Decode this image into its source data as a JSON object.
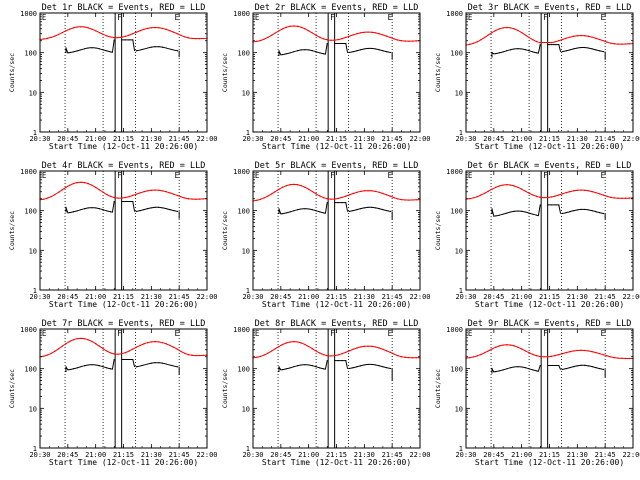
{
  "chart_data": {
    "type": "line",
    "x_ticks": [
      "20:30",
      "20:45",
      "21:00",
      "21:15",
      "21:30",
      "21:45",
      "22:00"
    ],
    "x_range_minutes": [
      0,
      90
    ],
    "ylim": [
      1,
      1000
    ],
    "yscale": "log",
    "y_ticks": [
      "1",
      "10",
      "100",
      "1000"
    ],
    "ylabel": "Counts/sec",
    "xlabel": "Start Time (12-Oct-11 20:26:00)",
    "dotted_lines_minutes": [
      13.5,
      34,
      51.5,
      75
    ],
    "solid_band_minutes": [
      40.5,
      44
    ],
    "flags": [
      {
        "text": "E",
        "minute": 0.5
      },
      {
        "text": "F",
        "minute": 41
      },
      {
        "text": "E",
        "minute": 72
      }
    ],
    "series_names": [
      "Events",
      "LLD"
    ],
    "series_colors": {
      "Events": "#000000",
      "LLD": "#ff0000"
    },
    "panels": [
      {
        "title": "Det 1r BLACK = Events, RED = LLD",
        "lld": {
          "base": 210,
          "peak1": 450,
          "mid": 220,
          "peak2": 430,
          "end": 230
        },
        "events": {
          "start": 130,
          "mid": 210,
          "lowA": 95,
          "lowB": 105,
          "end": 110
        }
      },
      {
        "title": "Det 2r BLACK = Events, RED = LLD",
        "lld": {
          "base": 180,
          "peak1": 470,
          "mid": 190,
          "peak2": 330,
          "end": 200
        },
        "events": {
          "start": 110,
          "mid": 170,
          "lowA": 85,
          "lowB": 95,
          "end": 95
        }
      },
      {
        "title": "Det 3r BLACK = Events, RED = LLD",
        "lld": {
          "base": 150,
          "peak1": 430,
          "mid": 180,
          "peak2": 270,
          "end": 170
        },
        "events": {
          "start": 100,
          "mid": 160,
          "lowA": 90,
          "lowB": 100,
          "end": 95
        }
      },
      {
        "title": "Det 4r BLACK = Events, RED = LLD",
        "lld": {
          "base": 180,
          "peak1": 520,
          "mid": 190,
          "peak2": 330,
          "end": 200
        },
        "events": {
          "start": 120,
          "mid": 170,
          "lowA": 85,
          "lowB": 90,
          "end": 90
        }
      },
      {
        "title": "Det 5r BLACK = Events, RED = LLD",
        "lld": {
          "base": 170,
          "peak1": 460,
          "mid": 180,
          "peak2": 320,
          "end": 190
        },
        "events": {
          "start": 110,
          "mid": 160,
          "lowA": 80,
          "lowB": 90,
          "end": 85
        }
      },
      {
        "title": "Det 6r BLACK = Events, RED = LLD",
        "lld": {
          "base": 190,
          "peak1": 450,
          "mid": 200,
          "peak2": 330,
          "end": 210
        },
        "events": {
          "start": 110,
          "mid": 140,
          "lowA": 70,
          "lowB": 80,
          "end": 85
        }
      },
      {
        "title": "Det 7r BLACK = Events, RED = LLD",
        "lld": {
          "base": 190,
          "peak1": 580,
          "mid": 200,
          "peak2": 480,
          "end": 220
        },
        "events": {
          "start": 110,
          "mid": 170,
          "lowA": 90,
          "lowB": 105,
          "end": 100
        }
      },
      {
        "title": "Det 8r BLACK = Events, RED = LLD",
        "lld": {
          "base": 180,
          "peak1": 480,
          "mid": 190,
          "peak2": 370,
          "end": 190
        },
        "events": {
          "start": 110,
          "mid": 160,
          "lowA": 90,
          "lowB": 95,
          "end": 70
        }
      },
      {
        "title": "Det 9r BLACK = Events, RED = LLD",
        "lld": {
          "base": 180,
          "peak1": 400,
          "mid": 190,
          "peak2": 290,
          "end": 180
        },
        "events": {
          "start": 100,
          "mid": 120,
          "lowA": 80,
          "lowB": 90,
          "end": 85
        }
      }
    ]
  }
}
